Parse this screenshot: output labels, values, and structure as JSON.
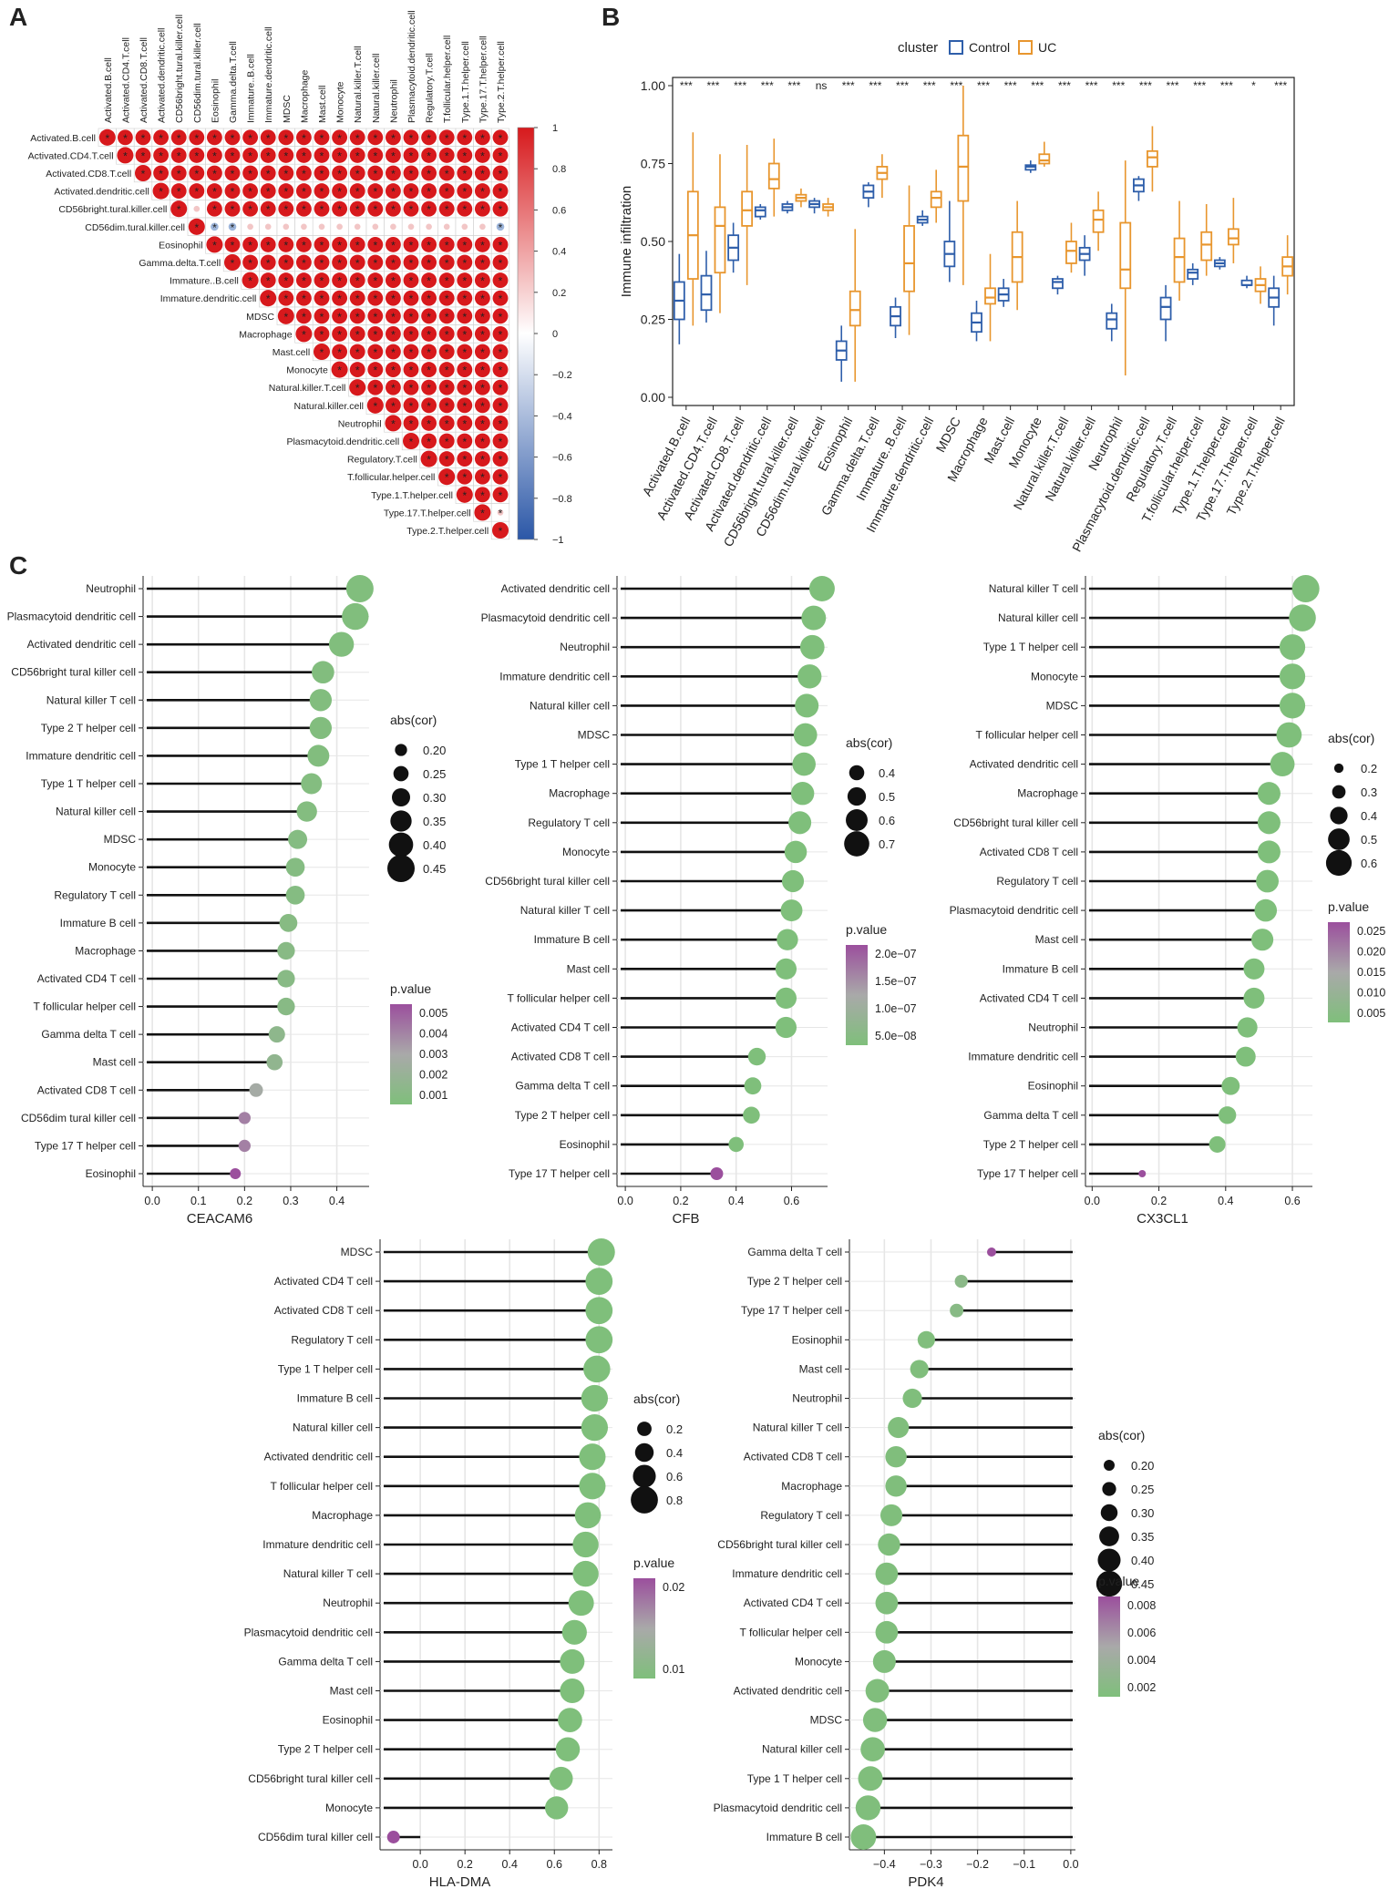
{
  "panels": {
    "a": "A",
    "b": "B",
    "c": "C"
  },
  "colors": {
    "control": "#2E5EAA",
    "uc": "#E8962E",
    "corr_pos": "#D7191C",
    "corr_neg": "#2B57A7",
    "pval_low": "#7FBF7B",
    "pval_high": "#9B4F9D",
    "grid": "#E6E6E6"
  },
  "chart_data": [
    {
      "id": "A",
      "type": "heatmap",
      "title": "",
      "cells": [
        "Activated.B.cell",
        "Activated.CD4.T.cell",
        "Activated.CD8.T.cell",
        "Activated.dendritic.cell",
        "CD56bright.tural.killer.cell",
        "CD56dim.tural.killer.cell",
        "Eosinophil",
        "Gamma.delta.T.cell",
        "Immature..B.cell",
        "Immature.dendritic.cell",
        "MDSC",
        "Macrophage",
        "Mast.cell",
        "Monocyte",
        "Natural.killer.T.cell",
        "Natural.killer.cell",
        "Neutrophil",
        "Plasmacytoid.dendritic.cell",
        "Regulatory.T.cell",
        "T.follicular.helper.cell",
        "Type.1.T.helper.cell",
        "Type.17.T.helper.cell",
        "Type.2.T.helper.cell"
      ],
      "colorbar": {
        "range": [
          -1,
          1
        ],
        "ticks": [
          "1",
          "0.8",
          "0.6",
          "0.4",
          "0.2",
          "0",
          "−0.2",
          "−0.4",
          "−0.6",
          "−0.8",
          "−1"
        ]
      },
      "significance_mark": "*",
      "weak_pairs": {
        "4": [
          5
        ],
        "5": [
          6,
          7,
          8,
          9,
          10,
          11,
          12,
          13,
          14,
          15,
          16,
          17,
          18,
          19,
          20,
          21,
          22
        ],
        "21": [
          22
        ]
      },
      "negative_pairs": {
        "5": [
          6,
          7,
          22
        ]
      }
    },
    {
      "id": "B",
      "type": "box",
      "legend_title": "cluster",
      "series": [
        {
          "name": "Control"
        },
        {
          "name": "UC"
        }
      ],
      "ylabel": "Immune infiltration",
      "ylim": [
        0,
        1
      ],
      "yticks": [
        "0.00",
        "0.25",
        "0.50",
        "0.75",
        "1.00"
      ],
      "categories": [
        "Activated.B.cell",
        "Activated.CD4.T.cell",
        "Activated.CD8.T.cell",
        "Activated.dendritic.cell",
        "CD56bright.tural.killer.cell",
        "CD56dim.tural.killer.cell",
        "Eosinophil",
        "Gamma.delta.T.cell",
        "Immature..B.cell",
        "Immature.dendritic.cell",
        "MDSC",
        "Macrophage",
        "Mast.cell",
        "Monocyte",
        "Natural.killer.T.cell",
        "Natural.killer.cell",
        "Neutrophil",
        "Plasmacytoid.dendritic.cell",
        "Regulatory.T.cell",
        "T.follicular.helper.cell",
        "Type.1.T.helper.cell",
        "Type.17.T.helper.cell",
        "Type.2.T.helper.cell"
      ],
      "significance": [
        "***",
        "***",
        "***",
        "***",
        "***",
        "ns",
        "***",
        "***",
        "***",
        "***",
        "***",
        "***",
        "***",
        "***",
        "***",
        "***",
        "***",
        "***",
        "***",
        "***",
        "***",
        "*",
        "***"
      ],
      "control": [
        [
          0.17,
          0.25,
          0.31,
          0.37,
          0.46
        ],
        [
          0.24,
          0.28,
          0.33,
          0.39,
          0.47
        ],
        [
          0.4,
          0.44,
          0.48,
          0.52,
          0.56
        ],
        [
          0.57,
          0.58,
          0.6,
          0.61,
          0.62
        ],
        [
          0.59,
          0.6,
          0.61,
          0.62,
          0.63
        ],
        [
          0.59,
          0.61,
          0.62,
          0.63,
          0.64
        ],
        [
          0.05,
          0.12,
          0.15,
          0.18,
          0.23
        ],
        [
          0.61,
          0.64,
          0.66,
          0.68,
          0.69
        ],
        [
          0.19,
          0.23,
          0.26,
          0.29,
          0.32
        ],
        [
          0.55,
          0.56,
          0.57,
          0.58,
          0.6
        ],
        [
          0.37,
          0.42,
          0.46,
          0.5,
          0.63
        ],
        [
          0.18,
          0.21,
          0.24,
          0.27,
          0.31
        ],
        [
          0.29,
          0.31,
          0.33,
          0.35,
          0.38
        ],
        [
          0.72,
          0.73,
          0.74,
          0.745,
          0.76
        ],
        [
          0.33,
          0.35,
          0.37,
          0.38,
          0.39
        ],
        [
          0.39,
          0.44,
          0.46,
          0.48,
          0.52
        ],
        [
          0.18,
          0.22,
          0.25,
          0.27,
          0.3
        ],
        [
          0.63,
          0.66,
          0.68,
          0.7,
          0.71
        ],
        [
          0.18,
          0.25,
          0.29,
          0.32,
          0.36
        ],
        [
          0.36,
          0.38,
          0.4,
          0.41,
          0.43
        ],
        [
          0.41,
          0.42,
          0.43,
          0.44,
          0.45
        ],
        [
          0.35,
          0.36,
          0.36,
          0.375,
          0.39
        ],
        [
          0.23,
          0.29,
          0.32,
          0.35,
          0.39
        ]
      ],
      "uc": [
        [
          0.23,
          0.38,
          0.52,
          0.66,
          0.85
        ],
        [
          0.27,
          0.4,
          0.55,
          0.61,
          0.78
        ],
        [
          0.36,
          0.55,
          0.6,
          0.66,
          0.81
        ],
        [
          0.58,
          0.67,
          0.7,
          0.75,
          0.83
        ],
        [
          0.61,
          0.63,
          0.64,
          0.65,
          0.67
        ],
        [
          0.58,
          0.6,
          0.61,
          0.62,
          0.64
        ],
        [
          0.05,
          0.23,
          0.28,
          0.34,
          0.54
        ],
        [
          0.64,
          0.7,
          0.72,
          0.74,
          0.78
        ],
        [
          0.2,
          0.34,
          0.43,
          0.55,
          0.68
        ],
        [
          0.56,
          0.61,
          0.64,
          0.66,
          0.73
        ],
        [
          0.36,
          0.63,
          0.74,
          0.84,
          1.0
        ],
        [
          0.18,
          0.3,
          0.32,
          0.35,
          0.46
        ],
        [
          0.28,
          0.37,
          0.45,
          0.53,
          0.63
        ],
        [
          0.74,
          0.75,
          0.76,
          0.78,
          0.82
        ],
        [
          0.4,
          0.43,
          0.47,
          0.5,
          0.56
        ],
        [
          0.47,
          0.53,
          0.57,
          0.6,
          0.66
        ],
        [
          0.07,
          0.35,
          0.41,
          0.56,
          0.76
        ],
        [
          0.66,
          0.74,
          0.77,
          0.79,
          0.87
        ],
        [
          0.31,
          0.37,
          0.45,
          0.51,
          0.63
        ],
        [
          0.39,
          0.44,
          0.49,
          0.53,
          0.62
        ],
        [
          0.43,
          0.49,
          0.51,
          0.54,
          0.64
        ],
        [
          0.3,
          0.34,
          0.36,
          0.38,
          0.42
        ],
        [
          0.33,
          0.39,
          0.42,
          0.45,
          0.52
        ]
      ]
    },
    {
      "id": "C1",
      "type": "lollipop",
      "xlabel": "CEACAM6",
      "xlim": [
        -0.02,
        0.47
      ],
      "xticks": [
        "0.0",
        "0.1",
        "0.2",
        "0.3",
        "0.4"
      ],
      "size_legend": {
        "title": "abs(cor)",
        "values": [
          "0.20",
          "0.25",
          "0.30",
          "0.35",
          "0.40",
          "0.45"
        ]
      },
      "color_legend": {
        "title": "p.value",
        "ticks": [
          "0.005",
          "0.004",
          "0.003",
          "0.002",
          "0.001"
        ]
      },
      "labels": [
        "Neutrophil",
        "Plasmacytoid dendritic cell",
        "Activated dendritic cell",
        "CD56bright tural killer cell",
        "Natural killer T cell",
        "Type 2 T helper cell",
        "Immature dendritic cell",
        "Type 1 T helper cell",
        "Natural killer cell",
        "MDSC",
        "Monocyte",
        "Regulatory T cell",
        "Immature  B cell",
        "Macrophage",
        "Activated CD4 T cell",
        "T follicular helper cell",
        "Gamma delta T cell",
        "Mast cell",
        "Activated CD8 T cell",
        "CD56dim tural killer cell",
        "Type 17 T helper cell",
        "Eosinophil"
      ],
      "cor": [
        0.45,
        0.44,
        0.41,
        0.37,
        0.365,
        0.365,
        0.36,
        0.345,
        0.335,
        0.315,
        0.31,
        0.31,
        0.295,
        0.29,
        0.29,
        0.29,
        0.27,
        0.265,
        0.225,
        0.2,
        0.2,
        0.18
      ],
      "p": [
        0.0001,
        0.0001,
        0.0001,
        0.0002,
        0.0002,
        0.0002,
        0.0002,
        0.0003,
        0.0003,
        0.0004,
        0.0004,
        0.0004,
        0.0005,
        0.0006,
        0.0006,
        0.0006,
        0.001,
        0.0012,
        0.0025,
        0.004,
        0.004,
        0.0055
      ]
    },
    {
      "id": "C2",
      "type": "lollipop",
      "xlabel": "CFB",
      "xlim": [
        -0.03,
        0.73
      ],
      "xticks": [
        "0.0",
        "0.2",
        "0.4",
        "0.6"
      ],
      "size_legend": {
        "title": "abs(cor)",
        "values": [
          "0.4",
          "0.5",
          "0.6",
          "0.7"
        ]
      },
      "color_legend": {
        "title": "p.value",
        "ticks": [
          "2.0e−07",
          "1.5e−07",
          "1.0e−07",
          "5.0e−08"
        ]
      },
      "labels": [
        "Activated dendritic cell",
        "Plasmacytoid dendritic cell",
        "Neutrophil",
        "Immature dendritic cell",
        "Natural killer cell",
        "MDSC",
        "Type 1 T helper cell",
        "Macrophage",
        "Regulatory T cell",
        "Monocyte",
        "CD56bright tural killer cell",
        "Natural killer T cell",
        "Immature  B cell",
        "Mast cell",
        "T follicular helper cell",
        "Activated CD4 T cell",
        "Activated CD8 T cell",
        "Gamma delta T cell",
        "Type 2 T helper cell",
        "Eosinophil",
        "Type 17 T helper cell"
      ],
      "cor": [
        0.71,
        0.68,
        0.675,
        0.665,
        0.655,
        0.65,
        0.645,
        0.64,
        0.63,
        0.615,
        0.605,
        0.6,
        0.585,
        0.58,
        0.58,
        0.58,
        0.475,
        0.46,
        0.455,
        0.4,
        0.33
      ],
      "p": [
        1e-12,
        1e-12,
        1e-12,
        1e-12,
        1e-12,
        1e-12,
        1e-12,
        1e-12,
        1e-12,
        1e-11,
        1e-11,
        1e-11,
        1e-11,
        1e-11,
        1e-11,
        1e-11,
        1e-10,
        1e-10,
        1e-10,
        5e-10,
        2.3e-07
      ]
    },
    {
      "id": "C3",
      "type": "lollipop",
      "xlabel": "CX3CL1",
      "xlim": [
        -0.02,
        0.66
      ],
      "xticks": [
        "0.0",
        "0.2",
        "0.4",
        "0.6"
      ],
      "size_legend": {
        "title": "abs(cor)",
        "values": [
          "0.2",
          "0.3",
          "0.4",
          "0.5",
          "0.6"
        ]
      },
      "color_legend": {
        "title": "p.value",
        "ticks": [
          "0.025",
          "0.020",
          "0.015",
          "0.010",
          "0.005"
        ]
      },
      "labels": [
        "Natural killer T cell",
        "Natural killer cell",
        "Type 1 T helper cell",
        "Monocyte",
        "MDSC",
        "T follicular helper cell",
        "Activated dendritic cell",
        "Macrophage",
        "CD56bright tural killer cell",
        "Activated CD8 T cell",
        "Regulatory T cell",
        "Plasmacytoid dendritic cell",
        "Mast cell",
        "Immature  B cell",
        "Activated CD4 T cell",
        "Neutrophil",
        "Immature dendritic cell",
        "Eosinophil",
        "Gamma delta T cell",
        "Type 2 T helper cell",
        "Type 17 T helper cell"
      ],
      "cor": [
        0.64,
        0.63,
        0.6,
        0.6,
        0.6,
        0.59,
        0.57,
        0.53,
        0.53,
        0.53,
        0.525,
        0.52,
        0.51,
        0.485,
        0.485,
        0.465,
        0.46,
        0.415,
        0.405,
        0.375,
        0.15
      ],
      "p": [
        1e-09,
        1e-09,
        1e-09,
        1e-09,
        1e-09,
        1e-09,
        1e-09,
        1e-08,
        1e-08,
        1e-08,
        1e-08,
        1e-08,
        1e-08,
        1e-07,
        1e-07,
        1e-07,
        1e-07,
        1e-06,
        1e-06,
        1e-05,
        0.027
      ]
    },
    {
      "id": "C4",
      "type": "lollipop",
      "xlabel": "HLA-DMA",
      "xlim": [
        -0.18,
        0.86
      ],
      "xticks": [
        "0.0",
        "0.2",
        "0.4",
        "0.6",
        "0.8"
      ],
      "size_legend": {
        "title": "abs(cor)",
        "values": [
          "0.2",
          "0.4",
          "0.6",
          "0.8"
        ]
      },
      "color_legend": {
        "title": "p.value",
        "ticks": [
          "0.02",
          "0.01"
        ]
      },
      "labels": [
        "MDSC",
        "Activated CD4 T cell",
        "Activated CD8 T cell",
        "Regulatory T cell",
        "Type 1 T helper cell",
        "Immature  B cell",
        "Natural killer cell",
        "Activated dendritic cell",
        "T follicular helper cell",
        "Macrophage",
        "Immature dendritic cell",
        "Natural killer T cell",
        "Neutrophil",
        "Plasmacytoid dendritic cell",
        "Gamma delta T cell",
        "Mast cell",
        "Eosinophil",
        "Type 2 T helper cell",
        "CD56bright tural killer cell",
        "Monocyte",
        "CD56dim tural killer cell"
      ],
      "cor": [
        0.81,
        0.8,
        0.8,
        0.8,
        0.79,
        0.78,
        0.78,
        0.77,
        0.77,
        0.75,
        0.74,
        0.74,
        0.72,
        0.69,
        0.68,
        0.68,
        0.67,
        0.66,
        0.63,
        0.61,
        -0.12
      ],
      "p": [
        1e-12,
        1e-12,
        1e-12,
        1e-12,
        1e-12,
        1e-12,
        1e-12,
        1e-12,
        1e-12,
        1e-12,
        1e-12,
        1e-12,
        1e-12,
        1e-11,
        1e-11,
        1e-11,
        1e-11,
        1e-11,
        1e-10,
        1e-10,
        0.027
      ]
    },
    {
      "id": "C5",
      "type": "lollipop",
      "xlabel": "PDK4",
      "xlim": [
        -0.475,
        0.01
      ],
      "xticks": [
        "−0.4",
        "−0.3",
        "−0.2",
        "−0.1",
        "0.0"
      ],
      "size_legend": {
        "title": "abs(cor)",
        "values": [
          "0.20",
          "0.25",
          "0.30",
          "0.35",
          "0.40",
          "0.45"
        ]
      },
      "color_legend": {
        "title": "p.value",
        "ticks": [
          "0.008",
          "0.006",
          "0.004",
          "0.002"
        ]
      },
      "labels": [
        "Gamma delta T cell",
        "Type 2 T helper cell",
        "Type 17 T helper cell",
        "Eosinophil",
        "Mast cell",
        "Neutrophil",
        "Natural killer T cell",
        "Activated CD8 T cell",
        "Macrophage",
        "Regulatory T cell",
        "CD56bright tural killer cell",
        "Immature dendritic cell",
        "Activated CD4 T cell",
        "T follicular helper cell",
        "Monocyte",
        "Activated dendritic cell",
        "MDSC",
        "Natural killer cell",
        "Type 1 T helper cell",
        "Plasmacytoid dendritic cell",
        "Immature  B cell"
      ],
      "cor": [
        -0.17,
        -0.235,
        -0.245,
        -0.31,
        -0.325,
        -0.34,
        -0.37,
        -0.375,
        -0.375,
        -0.385,
        -0.39,
        -0.395,
        -0.395,
        -0.395,
        -0.4,
        -0.415,
        -0.42,
        -0.425,
        -0.43,
        -0.435,
        -0.445
      ],
      "p": [
        0.0085,
        0.0012,
        0.0009,
        0.0002,
        0.0001,
        0.0001,
        0.0001,
        0.0001,
        0.0001,
        0.0001,
        0.0001,
        0.0001,
        0.0001,
        0.0001,
        0.0001,
        0.0001,
        0.0001,
        0.0001,
        0.0001,
        0.0001,
        0.0001
      ]
    }
  ]
}
